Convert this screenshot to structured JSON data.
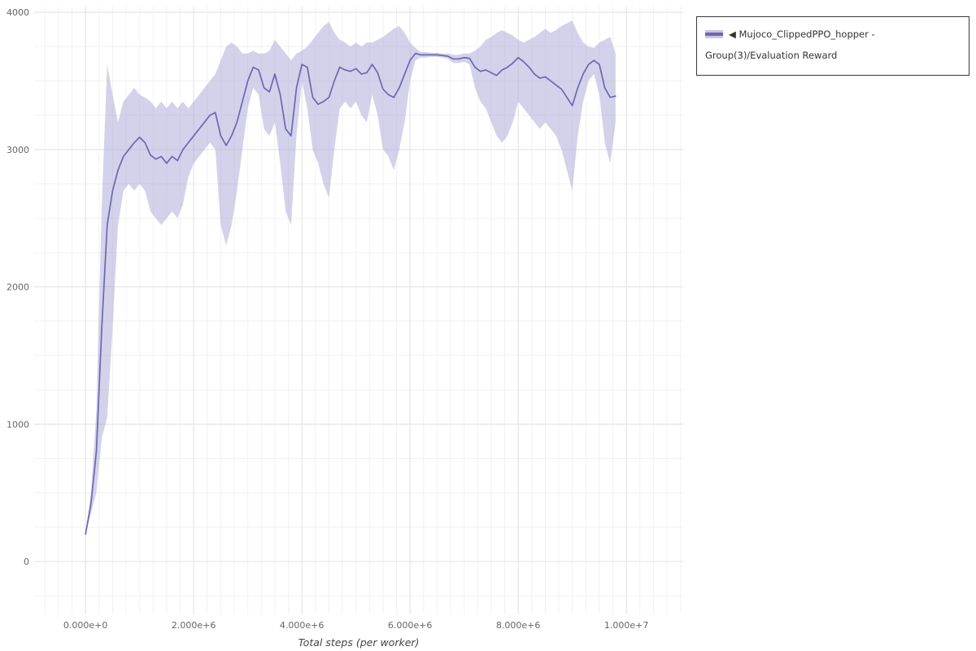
{
  "page": {
    "background": "#ffffff"
  },
  "legend": {
    "border_color": "#3a3a3a",
    "swatch": {
      "line_color": "#6b67b3",
      "band_color": "#c9c6e4"
    }
  },
  "chart_data": {
    "type": "line",
    "title": "",
    "xlabel": "Total steps (per worker)",
    "ylabel": "",
    "grid": true,
    "legend_position": "top-right",
    "xlim": [
      -950000,
      11050000
    ],
    "ylim": [
      -385,
      4042
    ],
    "xticks": {
      "values": [
        0,
        2000000,
        4000000,
        6000000,
        8000000,
        10000000
      ],
      "labels": [
        "0.000e+0",
        "2.000e+6",
        "4.000e+6",
        "6.000e+6",
        "8.000e+6",
        "1.000e+7"
      ]
    },
    "yticks": {
      "values": [
        0,
        1000,
        2000,
        3000,
        4000
      ],
      "labels": [
        "0",
        "1000",
        "2000",
        "3000",
        "4000"
      ]
    },
    "grid_minor_step": {
      "x": 250000,
      "y": 250
    },
    "colors": {
      "line": "#6b67b3",
      "band": "#aaa6d6",
      "grid_minor": "#f1f1f1",
      "grid_major": "#e3e3e3",
      "tick_text": "#666666"
    },
    "x": [
      0,
      100000,
      200000,
      300000,
      400000,
      500000,
      600000,
      700000,
      800000,
      900000,
      1000000,
      1100000,
      1200000,
      1300000,
      1400000,
      1500000,
      1600000,
      1700000,
      1800000,
      1900000,
      2000000,
      2100000,
      2200000,
      2300000,
      2400000,
      2500000,
      2600000,
      2700000,
      2800000,
      2900000,
      3000000,
      3100000,
      3200000,
      3300000,
      3400000,
      3500000,
      3600000,
      3700000,
      3800000,
      3900000,
      4000000,
      4100000,
      4200000,
      4300000,
      4400000,
      4500000,
      4600000,
      4700000,
      4800000,
      4900000,
      5000000,
      5100000,
      5200000,
      5300000,
      5400000,
      5500000,
      5600000,
      5700000,
      5800000,
      5900000,
      6000000,
      6100000,
      6200000,
      6300000,
      6400000,
      6500000,
      6600000,
      6700000,
      6800000,
      6900000,
      7000000,
      7100000,
      7200000,
      7300000,
      7400000,
      7500000,
      7600000,
      7700000,
      7800000,
      7900000,
      8000000,
      8100000,
      8200000,
      8300000,
      8400000,
      8500000,
      8600000,
      8700000,
      8800000,
      8900000,
      9000000,
      9100000,
      9200000,
      9300000,
      9400000,
      9500000,
      9600000,
      9700000,
      9800000
    ],
    "series": [
      {
        "name": "◀ Mujoco_ClippedPPO_hopper - Group(3)/Evaluation Reward",
        "mean": [
          200,
          420,
          800,
          1700,
          2450,
          2700,
          2850,
          2950,
          3000,
          3050,
          3090,
          3050,
          2960,
          2930,
          2950,
          2900,
          2950,
          2920,
          3000,
          3050,
          3100,
          3150,
          3200,
          3250,
          3270,
          3100,
          3030,
          3100,
          3200,
          3350,
          3500,
          3600,
          3580,
          3450,
          3420,
          3550,
          3400,
          3150,
          3100,
          3450,
          3620,
          3600,
          3380,
          3330,
          3350,
          3380,
          3500,
          3600,
          3580,
          3570,
          3590,
          3550,
          3560,
          3620,
          3560,
          3440,
          3400,
          3380,
          3450,
          3550,
          3650,
          3700,
          3690,
          3690,
          3690,
          3690,
          3685,
          3680,
          3660,
          3660,
          3670,
          3665,
          3600,
          3570,
          3580,
          3560,
          3540,
          3580,
          3600,
          3630,
          3670,
          3640,
          3600,
          3550,
          3520,
          3530,
          3500,
          3470,
          3440,
          3380,
          3320,
          3450,
          3550,
          3620,
          3650,
          3620,
          3450,
          3380,
          3390
        ],
        "lower": [
          200,
          350,
          500,
          900,
          1050,
          1700,
          2450,
          2700,
          2750,
          2700,
          2750,
          2700,
          2550,
          2500,
          2450,
          2500,
          2550,
          2500,
          2600,
          2800,
          2900,
          2950,
          3000,
          3050,
          3000,
          2450,
          2300,
          2450,
          2700,
          3000,
          3300,
          3450,
          3400,
          3150,
          3100,
          3200,
          2900,
          2550,
          2450,
          3100,
          3500,
          3300,
          3000,
          2900,
          2750,
          2650,
          3000,
          3300,
          3350,
          3300,
          3350,
          3250,
          3200,
          3400,
          3250,
          3000,
          2950,
          2850,
          3000,
          3200,
          3500,
          3650,
          3670,
          3670,
          3675,
          3675,
          3670,
          3660,
          3630,
          3630,
          3640,
          3620,
          3450,
          3350,
          3300,
          3200,
          3100,
          3050,
          3100,
          3200,
          3350,
          3300,
          3250,
          3200,
          3150,
          3200,
          3150,
          3100,
          3000,
          2850,
          2700,
          3100,
          3350,
          3500,
          3550,
          3400,
          3050,
          2900,
          3200
        ],
        "upper": [
          200,
          500,
          1100,
          2600,
          3620,
          3400,
          3200,
          3350,
          3400,
          3450,
          3400,
          3380,
          3350,
          3300,
          3350,
          3300,
          3350,
          3300,
          3350,
          3300,
          3350,
          3400,
          3450,
          3500,
          3550,
          3650,
          3750,
          3780,
          3750,
          3700,
          3700,
          3720,
          3700,
          3700,
          3720,
          3800,
          3750,
          3700,
          3650,
          3700,
          3720,
          3750,
          3800,
          3850,
          3900,
          3930,
          3850,
          3800,
          3780,
          3750,
          3780,
          3750,
          3780,
          3780,
          3800,
          3820,
          3850,
          3880,
          3900,
          3850,
          3780,
          3740,
          3710,
          3710,
          3705,
          3705,
          3700,
          3700,
          3690,
          3690,
          3700,
          3700,
          3720,
          3750,
          3800,
          3820,
          3850,
          3870,
          3850,
          3830,
          3800,
          3780,
          3800,
          3820,
          3850,
          3880,
          3850,
          3870,
          3900,
          3920,
          3940,
          3850,
          3780,
          3750,
          3740,
          3780,
          3800,
          3820,
          3700
        ]
      }
    ]
  }
}
